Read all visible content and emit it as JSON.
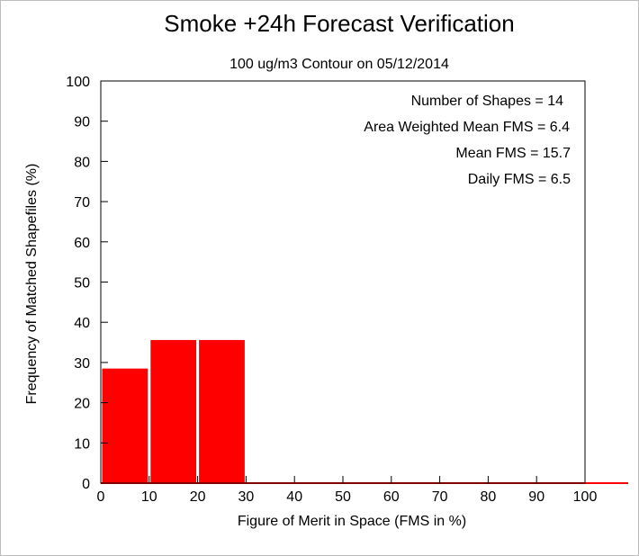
{
  "chart_data": {
    "type": "bar",
    "title": "Smoke +24h Forecast Verification",
    "subtitle": "100 ug/m3 Contour on 05/12/2014",
    "xlabel": "Figure of Merit in Space (FMS in %)",
    "ylabel": "Frequency of Matched Shapefiles (%)",
    "xlim": [
      0,
      100
    ],
    "ylim": [
      0,
      100
    ],
    "x_ticks": [
      "0",
      "10",
      "20",
      "30",
      "40",
      "50",
      "60",
      "70",
      "80",
      "90",
      "100"
    ],
    "y_ticks": [
      "0",
      "10",
      "20",
      "30",
      "40",
      "50",
      "60",
      "70",
      "80",
      "90",
      "100"
    ],
    "bins": [
      [
        0,
        10
      ],
      [
        10,
        20
      ],
      [
        20,
        30
      ],
      [
        30,
        40
      ],
      [
        40,
        50
      ],
      [
        50,
        60
      ],
      [
        60,
        70
      ],
      [
        70,
        80
      ],
      [
        80,
        90
      ],
      [
        90,
        100
      ]
    ],
    "values": [
      28.6,
      35.7,
      35.7,
      0,
      0,
      0,
      0,
      0,
      0,
      0
    ],
    "bar_color": "#ff0000",
    "grid": false,
    "annotations": [
      "Number of Shapes = 14",
      "Area Weighted Mean FMS = 6.4",
      "Mean FMS = 15.7",
      "Daily FMS = 6.5"
    ]
  }
}
